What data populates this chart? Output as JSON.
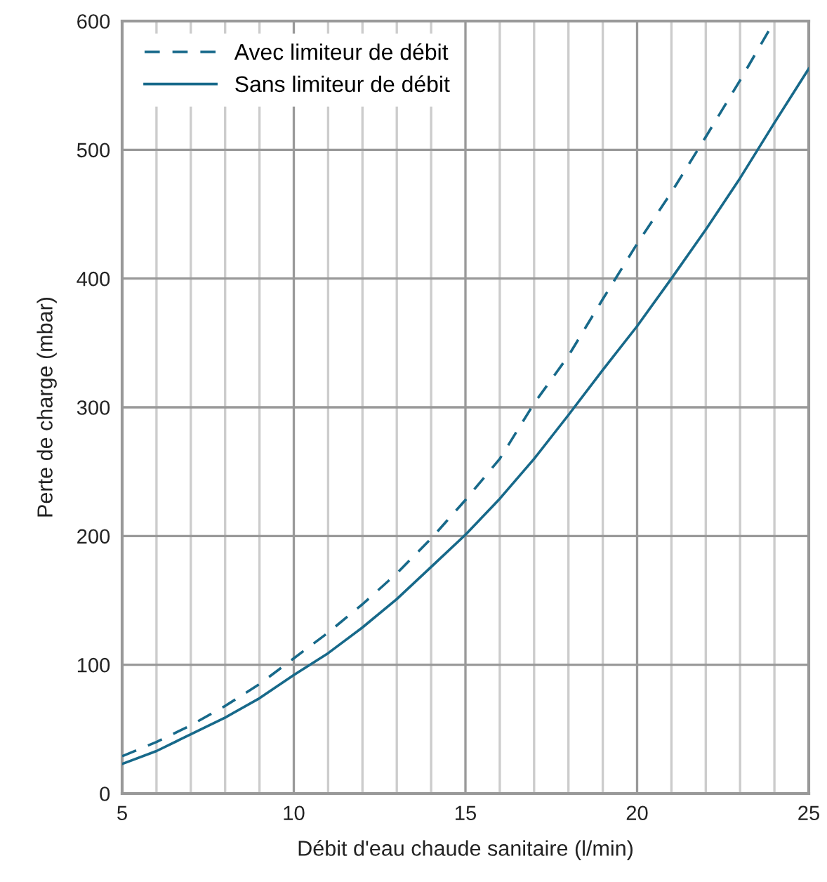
{
  "chart_data": {
    "type": "line",
    "xlabel": "Débit d'eau chaude sanitaire (l/min)",
    "ylabel": "Perte de charge (mbar)",
    "x": [
      5,
      6,
      7,
      8,
      9,
      10,
      11,
      12,
      13,
      14,
      15,
      16,
      17,
      18,
      19,
      20,
      21,
      22,
      23,
      24,
      25
    ],
    "series": [
      {
        "name": "Avec limiteur de débit",
        "color": "#17698a",
        "line_style": "dashed",
        "x": [
          5,
          6,
          7,
          8,
          9,
          10,
          11,
          12,
          13,
          14,
          15,
          16,
          17,
          18,
          19,
          20,
          21,
          22,
          23,
          24
        ],
        "values": [
          29,
          40,
          53,
          68,
          85,
          105,
          125,
          147,
          171,
          198,
          228,
          260,
          303,
          340,
          384,
          427,
          467,
          510,
          554,
          600
        ]
      },
      {
        "name": "Sans limiteur de débit",
        "color": "#17698a",
        "line_style": "solid",
        "values": [
          23,
          33,
          46,
          59,
          74,
          92,
          109,
          129,
          151,
          176,
          201,
          229,
          260,
          294,
          329,
          363,
          400,
          438,
          478,
          521,
          563
        ]
      }
    ],
    "xlim": [
      5,
      25
    ],
    "ylim": [
      0,
      600
    ],
    "xticks": [
      5,
      {
        "value": 6,
        "label": null
      },
      {
        "value": 7,
        "label": null
      },
      {
        "value": 8,
        "label": null
      },
      {
        "value": 9,
        "label": null
      },
      10,
      {
        "value": 11,
        "label": null
      },
      {
        "value": 12,
        "label": null
      },
      {
        "value": 13,
        "label": null
      },
      {
        "value": 14,
        "label": null
      },
      15,
      {
        "value": 16,
        "label": null
      },
      {
        "value": 17,
        "label": null
      },
      {
        "value": 18,
        "label": null
      },
      {
        "value": 19,
        "label": null
      },
      20,
      {
        "value": 21,
        "label": null
      },
      {
        "value": 22,
        "label": null
      },
      {
        "value": 23,
        "label": null
      },
      {
        "value": 24,
        "label": null
      },
      25
    ],
    "yticks": [
      0,
      100,
      200,
      300,
      400,
      500,
      600
    ],
    "grid": true,
    "legend": "top left",
    "marker": "none"
  }
}
